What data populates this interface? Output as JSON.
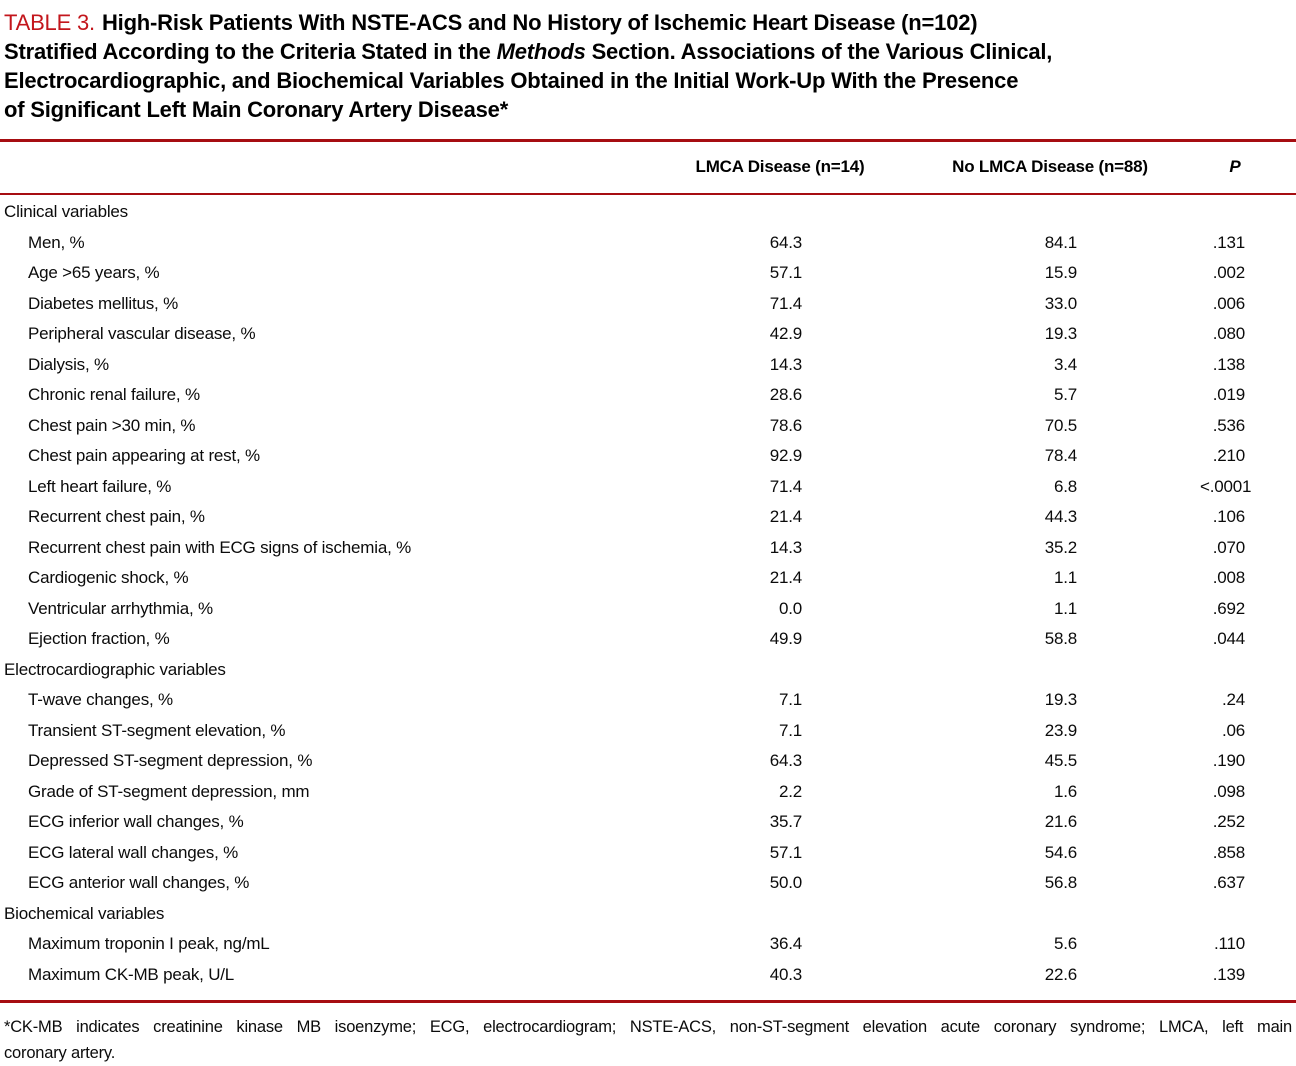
{
  "colors": {
    "title_red": "#c3161c",
    "rule_red": "#a60d11"
  },
  "title": {
    "label": "TABLE 3.",
    "line1": "High-Risk Patients With NSTE-ACS and No History of Ischemic Heart Disease (n=102)",
    "line2_pre": "Stratified According to the Criteria Stated in the ",
    "line2_italic": "Methods",
    "line2_post": " Section. Associations of the Various Clinical,",
    "line3": "Electrocardiographic, and Biochemical Variables Obtained in the Initial Work-Up With the Presence",
    "line4": "of Significant Left Main Coronary Artery Disease*"
  },
  "header": {
    "lmca": "LMCA Disease (n=14)",
    "no_lmca": "No LMCA Disease (n=88)",
    "p": "P"
  },
  "table": {
    "sections": [
      {
        "label": "Clinical variables",
        "rows": [
          {
            "label": "Men, %",
            "lmca": "64.3",
            "no_lmca": "84.1",
            "p": ".131"
          },
          {
            "label": "Age >65 years, %",
            "lmca": "57.1",
            "no_lmca": "15.9",
            "p": ".002"
          },
          {
            "label": "Diabetes mellitus, %",
            "lmca": "71.4",
            "no_lmca": "33.0",
            "p": ".006"
          },
          {
            "label": "Peripheral vascular disease, %",
            "lmca": "42.9",
            "no_lmca": "19.3",
            "p": ".080"
          },
          {
            "label": "Dialysis, %",
            "lmca": "14.3",
            "no_lmca": "3.4",
            "p": ".138"
          },
          {
            "label": "Chronic renal failure, %",
            "lmca": "28.6",
            "no_lmca": "5.7",
            "p": ".019"
          },
          {
            "label": "Chest pain >30 min, %",
            "lmca": "78.6",
            "no_lmca": "70.5",
            "p": ".536"
          },
          {
            "label": "Chest pain appearing at rest, %",
            "lmca": "92.9",
            "no_lmca": "78.4",
            "p": ".210"
          },
          {
            "label": "Left heart failure, %",
            "lmca": "71.4",
            "no_lmca": "6.8",
            "p": "<.0001"
          },
          {
            "label": "Recurrent chest pain, %",
            "lmca": "21.4",
            "no_lmca": "44.3",
            "p": ".106"
          },
          {
            "label": "Recurrent chest pain with ECG signs of ischemia, %",
            "lmca": "14.3",
            "no_lmca": "35.2",
            "p": ".070"
          },
          {
            "label": "Cardiogenic shock, %",
            "lmca": "21.4",
            "no_lmca": "1.1",
            "p": ".008"
          },
          {
            "label": "Ventricular arrhythmia, %",
            "lmca": "0.0",
            "no_lmca": "1.1",
            "p": ".692"
          },
          {
            "label": "Ejection fraction, %",
            "lmca": "49.9",
            "no_lmca": "58.8",
            "p": ".044"
          }
        ]
      },
      {
        "label": "Electrocardiographic variables",
        "rows": [
          {
            "label": "T-wave changes, %",
            "lmca": "7.1",
            "no_lmca": "19.3",
            "p": ".24"
          },
          {
            "label": "Transient ST-segment elevation, %",
            "lmca": "7.1",
            "no_lmca": "23.9",
            "p": ".06"
          },
          {
            "label": "Depressed ST-segment depression, %",
            "lmca": "64.3",
            "no_lmca": "45.5",
            "p": ".190"
          },
          {
            "label": "Grade of ST-segment depression, mm",
            "lmca": "2.2",
            "no_lmca": "1.6",
            "p": ".098"
          },
          {
            "label": "ECG inferior wall changes, %",
            "lmca": "35.7",
            "no_lmca": "21.6",
            "p": ".252"
          },
          {
            "label": "ECG lateral wall changes, %",
            "lmca": "57.1",
            "no_lmca": "54.6",
            "p": ".858"
          },
          {
            "label": "ECG anterior wall changes, %",
            "lmca": "50.0",
            "no_lmca": "56.8",
            "p": ".637"
          }
        ]
      },
      {
        "label": "Biochemical variables",
        "rows": [
          {
            "label": "Maximum troponin I peak, ng/mL",
            "lmca": "36.4",
            "no_lmca": "5.6",
            "p": ".110"
          },
          {
            "label": "Maximum CK-MB peak, U/L",
            "lmca": "40.3",
            "no_lmca": "22.6",
            "p": ".139"
          }
        ]
      }
    ]
  },
  "footnote": {
    "line1": "*CK-MB indicates creatinine kinase MB isoenzyme; ECG, electrocardiogram; NSTE-ACS, non-ST-segment elevation acute coronary syndrome; LMCA, left main",
    "line2": "coronary artery."
  }
}
